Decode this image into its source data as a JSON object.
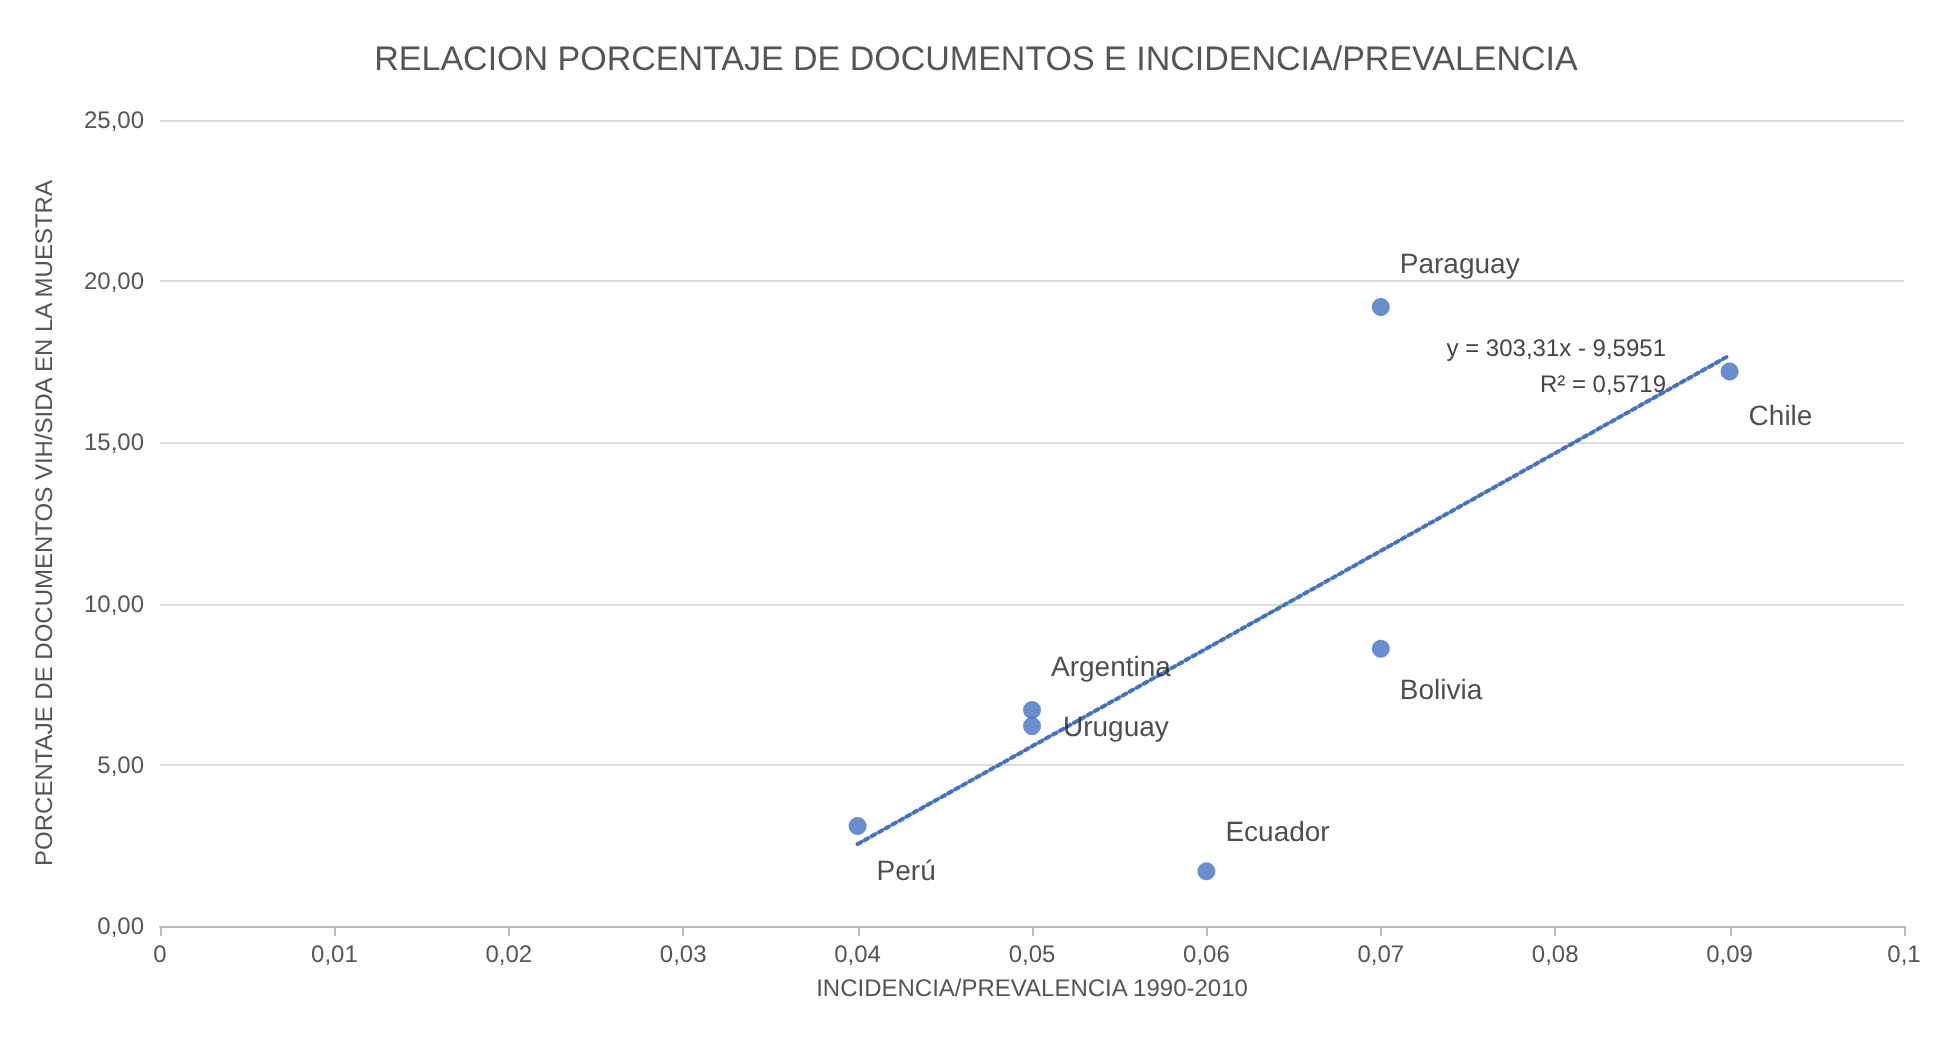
{
  "chart_data": {
    "type": "scatter",
    "title": "RELACION PORCENTAJE DE DOCUMENTOS E INCIDENCIA/PREVALENCIA",
    "xlabel": "INCIDENCIA/PREVALENCIA 1990-2010",
    "ylabel": "PORCENTAJE DE DOCUMENTOS VIH/SIDA EN LA MUESTRA",
    "series": [
      {
        "color": "#4472c4",
        "x": [
          0.07,
          0.09,
          0.07,
          0.05,
          0.05,
          0.04,
          0.06
        ],
        "values": [
          19.2,
          17.2,
          8.6,
          6.7,
          6.2,
          3.1,
          1.7
        ],
        "value_labels": [
          "Paraguay",
          "Chile",
          "Bolivia",
          "Argentina",
          "Uruguay",
          "Perú",
          "Ecuador"
        ]
      },
      {
        "type": "line",
        "color": "#4472c4",
        "line_style": "dotted",
        "marker": "none",
        "x": [
          0.04,
          0.09
        ],
        "values": [
          2.54,
          17.7
        ]
      }
    ],
    "annotations": [
      "y = 303,31x - 9,5951",
      "R² = 0,5719"
    ],
    "xlim": [
      0,
      0.1
    ],
    "xticks": [
      {
        "value": 0,
        "label": "0"
      },
      {
        "value": 0.01,
        "label": "0,01"
      },
      {
        "value": 0.02,
        "label": "0,02"
      },
      {
        "value": 0.03,
        "label": "0,03"
      },
      {
        "value": 0.04,
        "label": "0,04"
      },
      {
        "value": 0.05,
        "label": "0,05"
      },
      {
        "value": 0.06,
        "label": "0,06"
      },
      {
        "value": 0.07,
        "label": "0,07"
      },
      {
        "value": 0.08,
        "label": "0,08"
      },
      {
        "value": 0.09,
        "label": "0,09"
      },
      {
        "value": 0.1,
        "label": "0,1"
      }
    ],
    "ylim": [
      0,
      25
    ],
    "yticks": [
      {
        "value": 0,
        "label": "0,00"
      },
      {
        "value": 5,
        "label": "5,00"
      },
      {
        "value": 10,
        "label": "10,00"
      },
      {
        "value": 15,
        "label": "15,00"
      },
      {
        "value": 20,
        "label": "20,00"
      },
      {
        "value": 25,
        "label": "25,00"
      }
    ],
    "grid": "y",
    "marker": "circle"
  }
}
